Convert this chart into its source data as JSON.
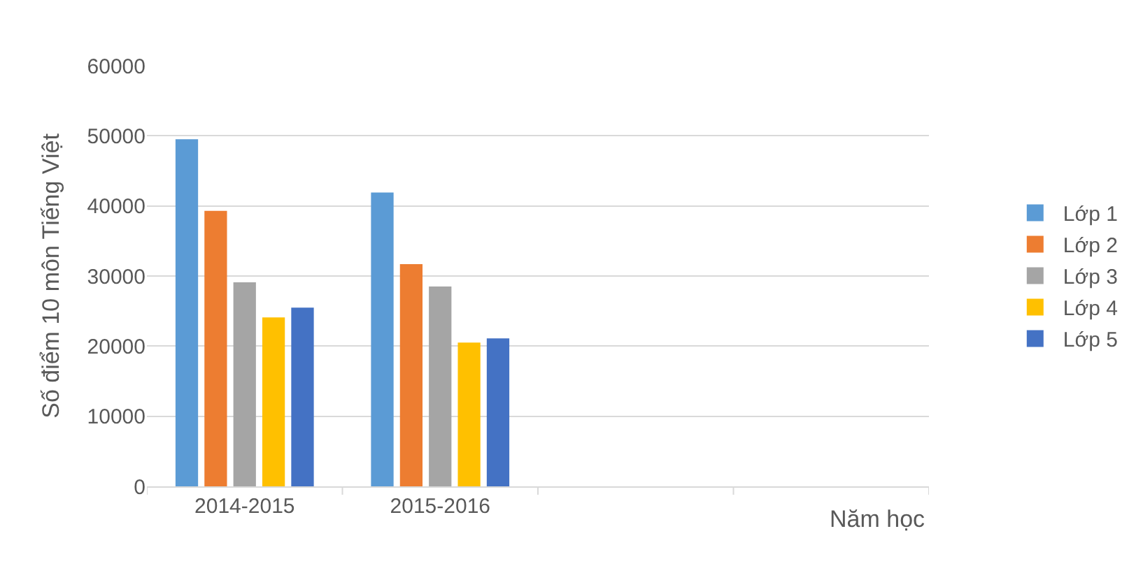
{
  "chart_data": {
    "type": "bar",
    "ylabel": "Số điểm 10 môn Tiếng Việt",
    "xlabel": "Năm học",
    "categories": [
      "2014-2015",
      "2015-2016",
      null,
      null
    ],
    "series": [
      {
        "name": "Lớp 1",
        "color": "#5b9bd5",
        "values": [
          49500,
          41900,
          null,
          null
        ]
      },
      {
        "name": "Lớp 2",
        "color": "#ed7d31",
        "values": [
          39300,
          31700,
          null,
          null
        ]
      },
      {
        "name": "Lớp 3",
        "color": "#a5a5a5",
        "values": [
          29100,
          28500,
          null,
          null
        ]
      },
      {
        "name": "Lớp 4",
        "color": "#ffc000",
        "values": [
          24100,
          20500,
          null,
          null
        ]
      },
      {
        "name": "Lớp 5",
        "color": "#4472c4",
        "values": [
          25500,
          21100,
          null,
          null
        ]
      }
    ],
    "ylim": [
      0,
      60000
    ],
    "yticks": [
      0,
      10000,
      20000,
      30000,
      40000,
      50000,
      60000
    ],
    "grid": "y",
    "legend": "right"
  }
}
